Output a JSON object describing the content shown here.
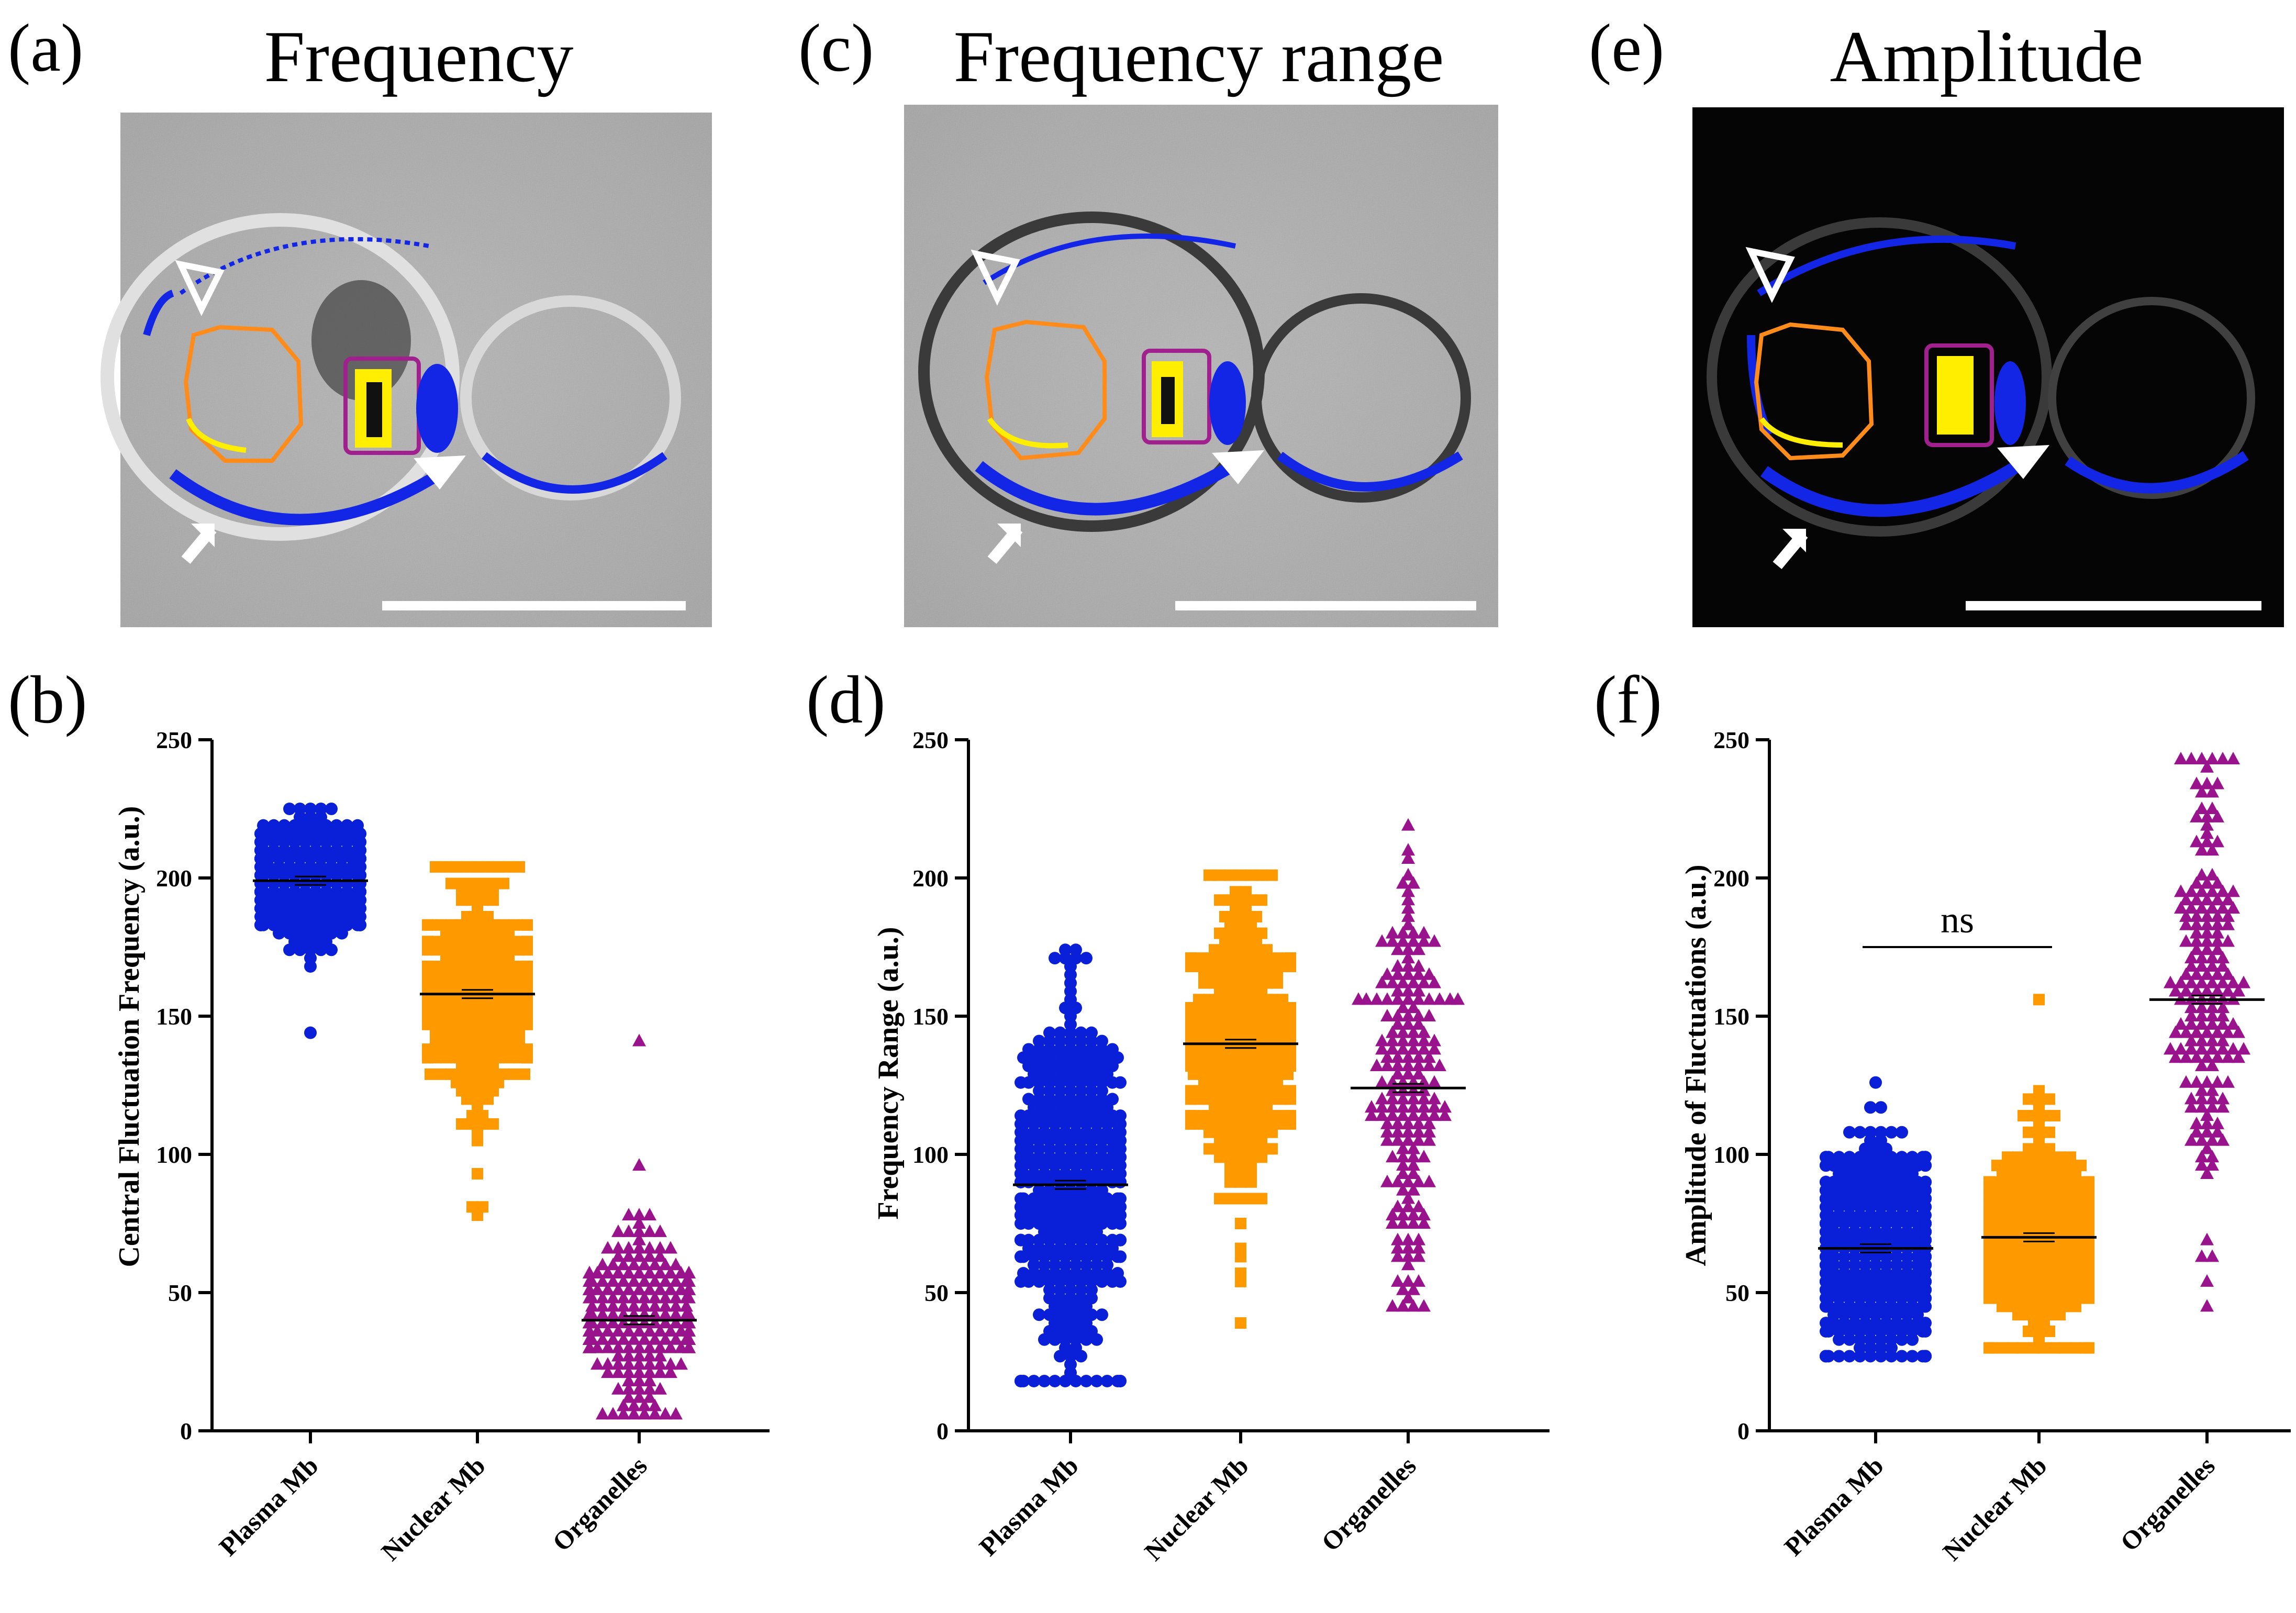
{
  "figure": {
    "panels": [
      {
        "letter": "(a)",
        "title": "Frequency",
        "style": "gray"
      },
      {
        "letter": "(c)",
        "title": "Frequency range",
        "style": "gray"
      },
      {
        "letter": "(e)",
        "title": "Amplitude",
        "style": "dark"
      }
    ]
  },
  "colors": {
    "plasma": "#0a1fd8",
    "nuclear": "#ff9900",
    "organelles": "#99148c",
    "roi_orange": "#ff8c1a",
    "roi_magenta": "#a0208e",
    "highlight_yellow": "#ffee00",
    "membrane_blue": "#1326e6"
  },
  "chart_data": [
    {
      "type": "scatter",
      "panel_letter": "(b)",
      "title": "",
      "ylabel": "Central Fluctuation Frequency (a.u.)",
      "xlabel": "",
      "ylim": [
        0,
        250
      ],
      "yticks": [
        "0",
        "50",
        "100",
        "150",
        "200",
        "250"
      ],
      "categories": [
        "Plasma Mb",
        "Nuclear Mb",
        "Organelles"
      ],
      "series": [
        {
          "name": "Plasma Mb",
          "marker": "circle",
          "mean": 199,
          "min": 145,
          "max": 225,
          "n": 260
        },
        {
          "name": "Nuclear Mb",
          "marker": "square",
          "mean": 158,
          "min": 77,
          "max": 205,
          "n": 300
        },
        {
          "name": "Organelles",
          "marker": "triangle",
          "mean": 40,
          "min": 5,
          "max": 142,
          "n": 240
        }
      ]
    },
    {
      "type": "scatter",
      "panel_letter": "(d)",
      "title": "",
      "ylabel": "Frequency Range (a.u.)",
      "xlabel": "",
      "ylim": [
        0,
        250
      ],
      "yticks": [
        "0",
        "50",
        "100",
        "150",
        "200",
        "250"
      ],
      "categories": [
        "Plasma Mb",
        "Nuclear Mb",
        "Organelles"
      ],
      "series": [
        {
          "name": "Plasma Mb",
          "marker": "circle",
          "mean": 89,
          "min": 18,
          "max": 173,
          "n": 420
        },
        {
          "name": "Nuclear Mb",
          "marker": "square",
          "mean": 140,
          "min": 40,
          "max": 202,
          "n": 330
        },
        {
          "name": "Organelles",
          "marker": "triangle",
          "mean": 124,
          "min": 44,
          "max": 220,
          "n": 190
        }
      ]
    },
    {
      "type": "scatter",
      "panel_letter": "(f)",
      "title": "",
      "ylabel": "Amplitude of Fluctuations (a.u.)",
      "xlabel": "",
      "ylim": [
        0,
        250
      ],
      "yticks": [
        "0",
        "50",
        "100",
        "150",
        "200",
        "250"
      ],
      "categories": [
        "Plasma Mb",
        "Nuclear Mb",
        "Organelles"
      ],
      "annotation": {
        "text": "ns",
        "between": [
          "Plasma Mb",
          "Nuclear Mb"
        ],
        "y": 175
      },
      "series": [
        {
          "name": "Plasma Mb",
          "marker": "circle",
          "mean": 66,
          "min": 26,
          "max": 127,
          "n": 500
        },
        {
          "name": "Nuclear Mb",
          "marker": "square",
          "mean": 70,
          "min": 31,
          "max": 157,
          "n": 350
        },
        {
          "name": "Organelles",
          "marker": "triangle",
          "mean": 156,
          "min": 44,
          "max": 243,
          "n": 180
        }
      ]
    }
  ]
}
